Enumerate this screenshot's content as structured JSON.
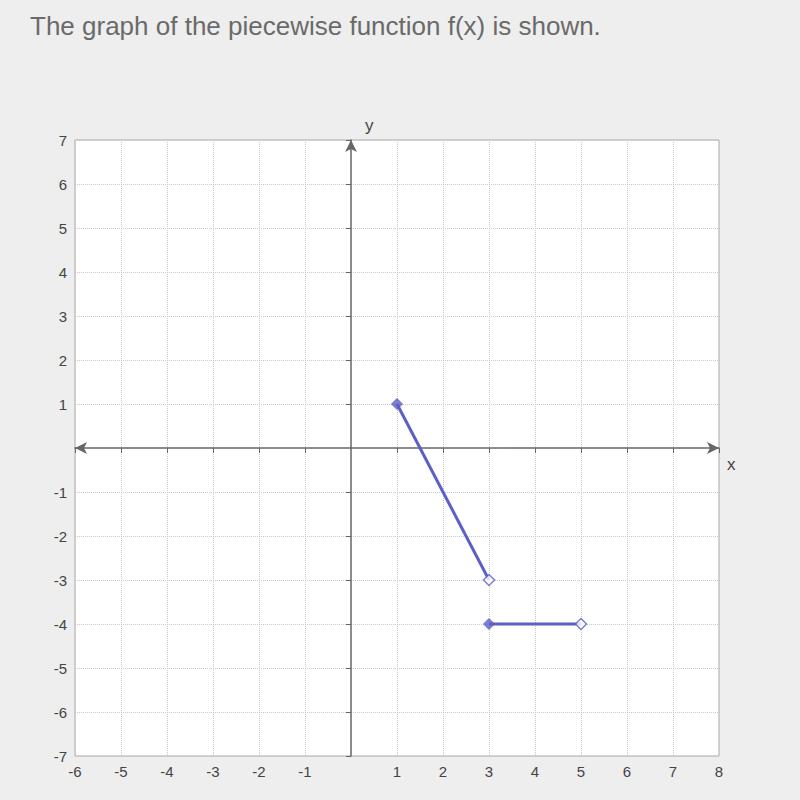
{
  "chart_data": {
    "type": "line",
    "title": "The graph of the piecewise function f(x) is shown.",
    "x_label": "x",
    "y_label": "y",
    "xlim": [
      -6,
      8
    ],
    "xticks": [
      -6,
      -5,
      -4,
      -3,
      -2,
      -1,
      1,
      2,
      3,
      4,
      5,
      6,
      7,
      8
    ],
    "ylim": [
      -7,
      7
    ],
    "yticks": [
      -7,
      -6,
      -5,
      -4,
      -3,
      -2,
      -1,
      1,
      2,
      3,
      4,
      5,
      6,
      7
    ],
    "grid": true,
    "color": "#5b5fc7",
    "series": [
      {
        "type": "line",
        "x": [
          1,
          3
        ],
        "values": [
          1,
          -3
        ]
      },
      {
        "type": "line",
        "x": [
          3,
          5
        ],
        "values": [
          -4,
          -4
        ]
      },
      {
        "type": "scatter",
        "marker": "diamond",
        "x": [
          1,
          3
        ],
        "values": [
          1,
          -4
        ]
      },
      {
        "type": "scatter",
        "marker": "open_diamond",
        "x": [
          3,
          5
        ],
        "values": [
          -3,
          -4
        ]
      }
    ]
  }
}
